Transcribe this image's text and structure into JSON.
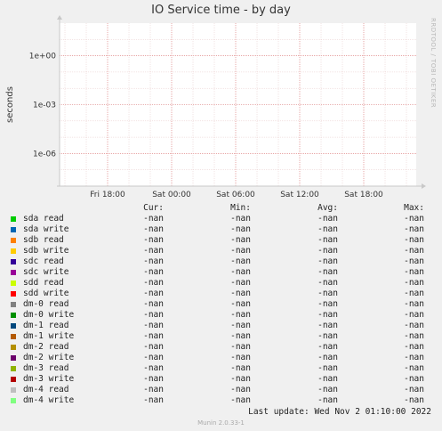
{
  "title": "IO Service time - by day",
  "watermark": "RRDTOOL / TOBI OETIKER",
  "chart_data": {
    "type": "line",
    "title": "IO Service time - by day",
    "ylabel": "seconds",
    "yscale": "log",
    "ylim": [
      1e-08,
      100
    ],
    "y_ticks": [
      "1e+00",
      "1e-03",
      "1e-06"
    ],
    "x_ticks": [
      "Fri 18:00",
      "Sat 00:00",
      "Sat 06:00",
      "Sat 12:00",
      "Sat 18:00"
    ],
    "grid": true,
    "series": [
      {
        "name": "sda read",
        "color": "#00cc00",
        "values": []
      },
      {
        "name": "sda write",
        "color": "#0066b3",
        "values": []
      },
      {
        "name": "sdb read",
        "color": "#ff8000",
        "values": []
      },
      {
        "name": "sdb write",
        "color": "#ffcc00",
        "values": []
      },
      {
        "name": "sdc read",
        "color": "#330099",
        "values": []
      },
      {
        "name": "sdc write",
        "color": "#990099",
        "values": []
      },
      {
        "name": "sdd read",
        "color": "#ccff00",
        "values": []
      },
      {
        "name": "sdd write",
        "color": "#ff0000",
        "values": []
      },
      {
        "name": "dm-0 read",
        "color": "#808080",
        "values": []
      },
      {
        "name": "dm-0 write",
        "color": "#008f00",
        "values": []
      },
      {
        "name": "dm-1 read",
        "color": "#00487d",
        "values": []
      },
      {
        "name": "dm-1 write",
        "color": "#b35a00",
        "values": []
      },
      {
        "name": "dm-2 read",
        "color": "#b38f00",
        "values": []
      },
      {
        "name": "dm-2 write",
        "color": "#6b006b",
        "values": []
      },
      {
        "name": "dm-3 read",
        "color": "#8fb300",
        "values": []
      },
      {
        "name": "dm-3 write",
        "color": "#b30000",
        "values": []
      },
      {
        "name": "dm-4 read",
        "color": "#bebebe",
        "values": []
      },
      {
        "name": "dm-4 write",
        "color": "#80ff80",
        "values": []
      }
    ]
  },
  "legend": {
    "headers": {
      "cur": "Cur:",
      "min": "Min:",
      "avg": "Avg:",
      "max": "Max:"
    },
    "rows": [
      {
        "name": "sda read",
        "color": "#00cc00",
        "cur": "-nan",
        "min": "-nan",
        "avg": "-nan",
        "max": "-nan"
      },
      {
        "name": "sda write",
        "color": "#0066b3",
        "cur": "-nan",
        "min": "-nan",
        "avg": "-nan",
        "max": "-nan"
      },
      {
        "name": "sdb read",
        "color": "#ff8000",
        "cur": "-nan",
        "min": "-nan",
        "avg": "-nan",
        "max": "-nan"
      },
      {
        "name": "sdb write",
        "color": "#ffcc00",
        "cur": "-nan",
        "min": "-nan",
        "avg": "-nan",
        "max": "-nan"
      },
      {
        "name": "sdc read",
        "color": "#330099",
        "cur": "-nan",
        "min": "-nan",
        "avg": "-nan",
        "max": "-nan"
      },
      {
        "name": "sdc write",
        "color": "#990099",
        "cur": "-nan",
        "min": "-nan",
        "avg": "-nan",
        "max": "-nan"
      },
      {
        "name": "sdd read",
        "color": "#ccff00",
        "cur": "-nan",
        "min": "-nan",
        "avg": "-nan",
        "max": "-nan"
      },
      {
        "name": "sdd write",
        "color": "#ff0000",
        "cur": "-nan",
        "min": "-nan",
        "avg": "-nan",
        "max": "-nan"
      },
      {
        "name": "dm-0 read",
        "color": "#808080",
        "cur": "-nan",
        "min": "-nan",
        "avg": "-nan",
        "max": "-nan"
      },
      {
        "name": "dm-0 write",
        "color": "#008f00",
        "cur": "-nan",
        "min": "-nan",
        "avg": "-nan",
        "max": "-nan"
      },
      {
        "name": "dm-1 read",
        "color": "#00487d",
        "cur": "-nan",
        "min": "-nan",
        "avg": "-nan",
        "max": "-nan"
      },
      {
        "name": "dm-1 write",
        "color": "#b35a00",
        "cur": "-nan",
        "min": "-nan",
        "avg": "-nan",
        "max": "-nan"
      },
      {
        "name": "dm-2 read",
        "color": "#b38f00",
        "cur": "-nan",
        "min": "-nan",
        "avg": "-nan",
        "max": "-nan"
      },
      {
        "name": "dm-2 write",
        "color": "#6b006b",
        "cur": "-nan",
        "min": "-nan",
        "avg": "-nan",
        "max": "-nan"
      },
      {
        "name": "dm-3 read",
        "color": "#8fb300",
        "cur": "-nan",
        "min": "-nan",
        "avg": "-nan",
        "max": "-nan"
      },
      {
        "name": "dm-3 write",
        "color": "#b30000",
        "cur": "-nan",
        "min": "-nan",
        "avg": "-nan",
        "max": "-nan"
      },
      {
        "name": "dm-4 read",
        "color": "#bebebe",
        "cur": "-nan",
        "min": "-nan",
        "avg": "-nan",
        "max": "-nan"
      },
      {
        "name": "dm-4 write",
        "color": "#80ff80",
        "cur": "-nan",
        "min": "-nan",
        "avg": "-nan",
        "max": "-nan"
      }
    ]
  },
  "last_update": "Last update:  Wed Nov  2 01:10:00 2022",
  "footer": "Munin 2.0.33-1"
}
